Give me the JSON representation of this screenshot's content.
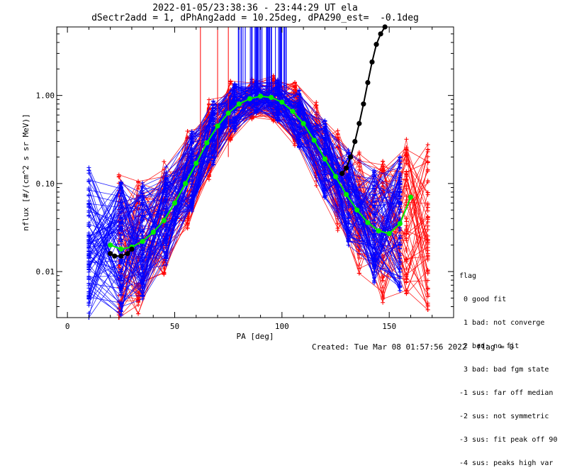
{
  "header": {
    "title_line1": "2022-01-05/23:38:36 - 23:44:29 UT ela",
    "title_line2": "dSectr2add = 1, dPhAng2add = 10.25deg, dPA290_est=  -0.1deg"
  },
  "legend": {
    "title": "flag",
    "items": [
      " 0 good fit",
      " 1 bad: not converge",
      " 2 bad: no fit",
      " 3 bad: bad fgm state",
      "-1 sus: far off median",
      "-2 sus: not symmetric",
      "-3 sus: fit peak off 90",
      "-4 sus: peaks high var"
    ]
  },
  "footer": {
    "created": "Created: Tue Mar 08 01:57:56 2022",
    "flag": "flag = 0"
  },
  "chart_data": {
    "type": "line",
    "xlabel": "PA [deg]",
    "ylabel": "nflux [#/(cm^2 s sr MeV)]",
    "xlim": [
      -5,
      180
    ],
    "ylim": [
      0.003,
      6
    ],
    "yscale": "log",
    "x_ticks": [
      0,
      50,
      100,
      150
    ],
    "y_ticks": [
      {
        "value": 0.01,
        "label": "0.01"
      },
      {
        "value": 0.1,
        "label": "0.10"
      },
      {
        "value": 1.0,
        "label": "1.00"
      }
    ],
    "colors": {
      "blue": "#0000ff",
      "red": "#ff0000",
      "green": "#00ee00",
      "black": "#000000"
    },
    "series": [
      {
        "color": "green",
        "x": [
          20,
          25,
          30,
          35,
          40,
          45,
          50,
          55,
          60,
          65,
          70,
          75,
          80,
          85,
          90,
          95,
          100,
          105,
          110,
          115,
          120,
          125,
          130,
          135,
          140,
          145,
          150,
          155,
          160
        ],
        "y": [
          0.02,
          0.018,
          0.019,
          0.022,
          0.028,
          0.038,
          0.06,
          0.1,
          0.17,
          0.29,
          0.45,
          0.63,
          0.8,
          0.92,
          0.98,
          0.95,
          0.84,
          0.66,
          0.48,
          0.31,
          0.19,
          0.12,
          0.075,
          0.05,
          0.036,
          0.029,
          0.027,
          0.035,
          0.07
        ]
      },
      {
        "color": "black",
        "x": [
          20,
          22,
          25,
          28,
          30
        ],
        "y": [
          0.016,
          0.015,
          0.015,
          0.016,
          0.018
        ]
      },
      {
        "color": "black",
        "x": [
          128,
          130,
          132,
          134,
          136,
          138,
          140,
          142,
          144,
          146,
          148
        ],
        "y": [
          0.13,
          0.15,
          0.2,
          0.3,
          0.48,
          0.8,
          1.4,
          2.4,
          3.8,
          5.0,
          6.0
        ]
      }
    ]
  }
}
